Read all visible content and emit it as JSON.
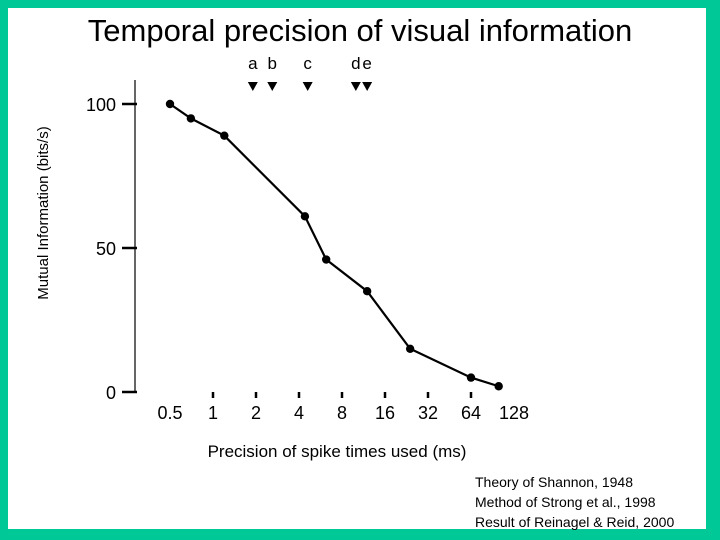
{
  "slide": {
    "title": "Temporal precision of visual information",
    "credits": [
      "Theory of Shannon, 1948",
      "Method of Strong et al., 1998",
      "Result of Reinagel & Reid, 2000"
    ]
  },
  "colors": {
    "background": "#00c896",
    "ink": "#000000"
  },
  "chart_data": {
    "type": "line",
    "title": "Temporal precision of visual information",
    "xlabel": "Precision of spike times used (ms)",
    "ylabel": "Mutual Information (bits/s)",
    "x_scale": "log2",
    "x_ticks": [
      "0.5",
      "1",
      "2",
      "4",
      "8",
      "16",
      "32",
      "64",
      "128"
    ],
    "y_ticks": [
      "0",
      "50",
      "100"
    ],
    "ylim": [
      0,
      100
    ],
    "points": [
      {
        "x": 0.5,
        "y": 100
      },
      {
        "x": 0.7,
        "y": 95
      },
      {
        "x": 1.2,
        "y": 89
      },
      {
        "x": 4.4,
        "y": 61
      },
      {
        "x": 6.2,
        "y": 46
      },
      {
        "x": 12,
        "y": 35
      },
      {
        "x": 24,
        "y": 15
      },
      {
        "x": 64,
        "y": 5
      },
      {
        "x": 100,
        "y": 2
      }
    ],
    "markers": [
      {
        "label": "a",
        "x": 1.9
      },
      {
        "label": "b",
        "x": 2.6
      },
      {
        "label": "c",
        "x": 4.6
      },
      {
        "label": "d",
        "x": 10
      },
      {
        "label": "e",
        "x": 12
      }
    ],
    "grid": false,
    "legend": "none"
  }
}
